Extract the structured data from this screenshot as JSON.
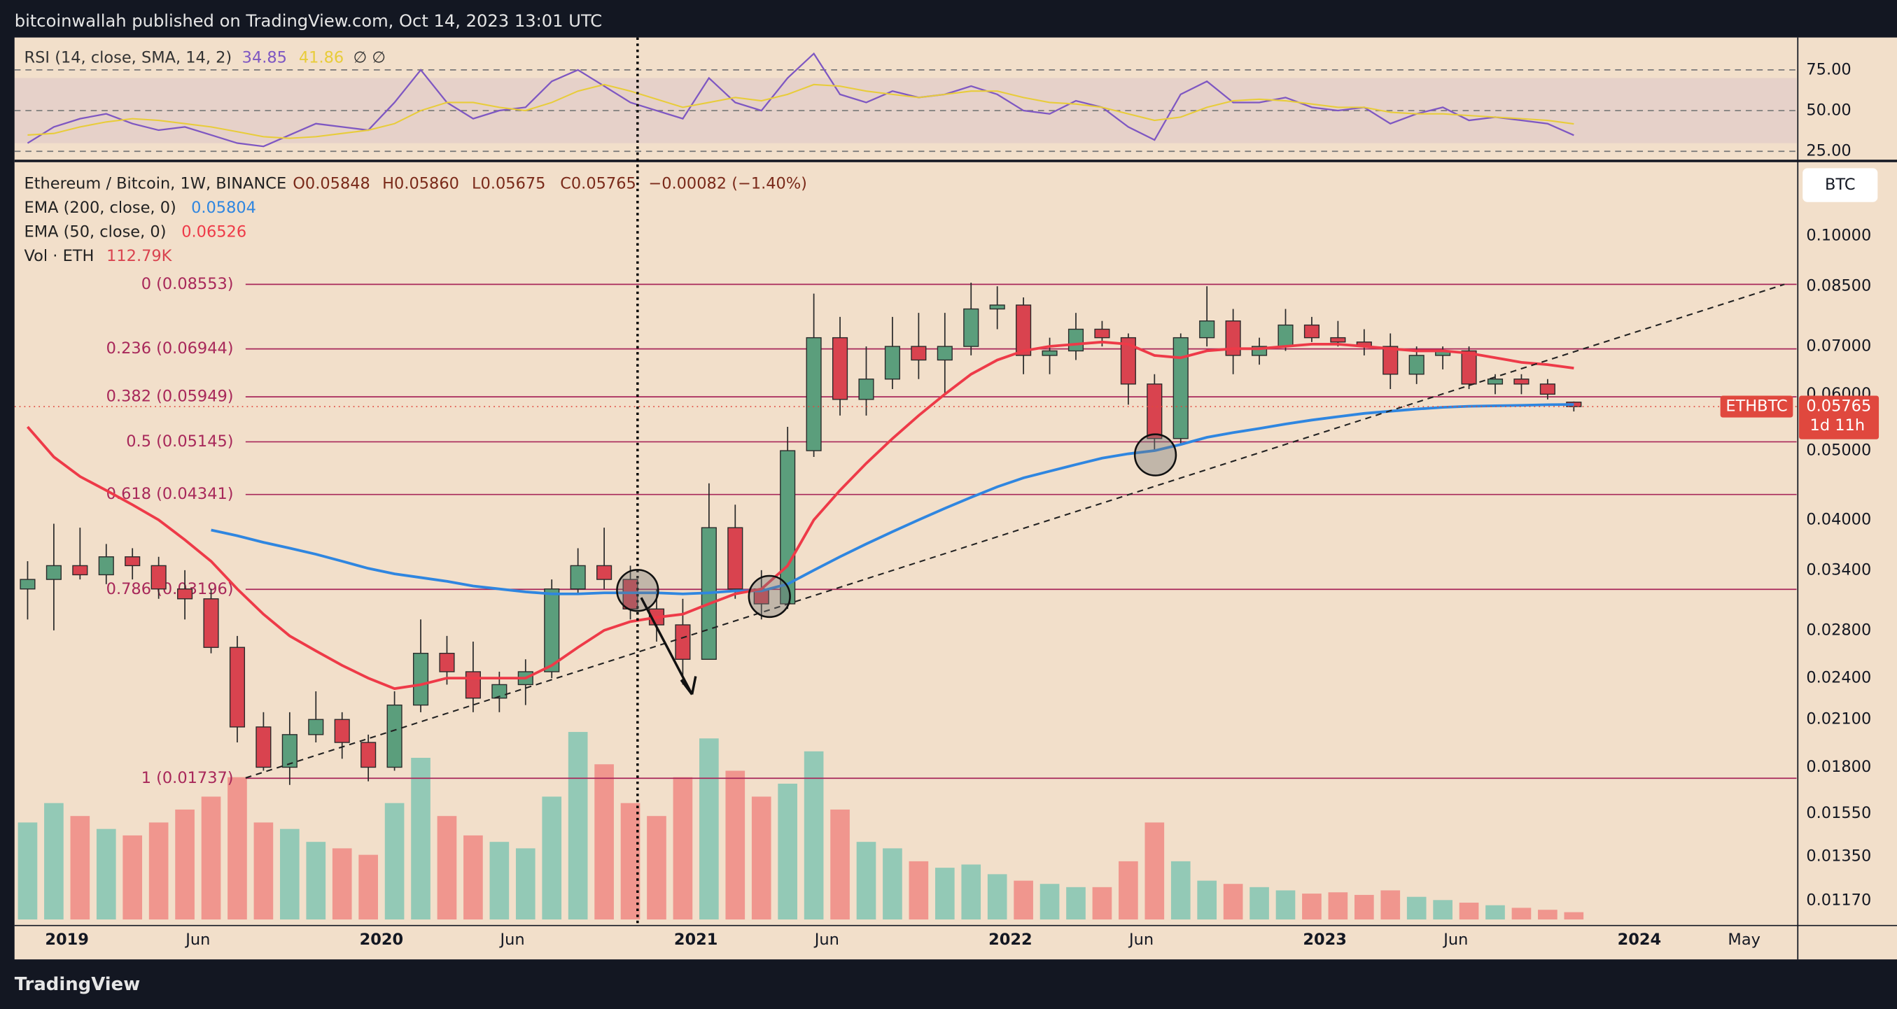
{
  "header": {
    "publisher": "bitcoinwallah published on TradingView.com, Oct 14, 2023 13:01 UTC",
    "brand": "TradingView"
  },
  "chart_data": [
    {
      "type": "candlestick",
      "title": "Ethereum / Bitcoin, 1W, BINANCE",
      "ohlc_labels": [
        "O0.05848",
        "H0.05860",
        "L0.05675",
        "C0.05765",
        "−0.00082 (−1.40%)"
      ],
      "x": [
        "2018-11",
        "2018-12",
        "2019-01",
        "2019-02",
        "2019-03",
        "2019-04",
        "2019-05",
        "2019-06",
        "2019-07",
        "2019-08",
        "2019-09",
        "2019-10",
        "2019-11",
        "2019-12",
        "2020-01",
        "2020-02",
        "2020-03",
        "2020-04",
        "2020-05",
        "2020-06",
        "2020-07",
        "2020-08",
        "2020-09",
        "2020-10",
        "2020-11",
        "2020-12",
        "2021-01",
        "2021-02",
        "2021-03",
        "2021-04",
        "2021-05",
        "2021-06",
        "2021-07",
        "2021-08",
        "2021-09",
        "2021-10",
        "2021-11",
        "2021-12",
        "2022-01",
        "2022-02",
        "2022-03",
        "2022-04",
        "2022-05",
        "2022-06",
        "2022-07",
        "2022-08",
        "2022-09",
        "2022-10",
        "2022-11",
        "2022-12",
        "2023-01",
        "2023-02",
        "2023-03",
        "2023-04",
        "2023-05",
        "2023-06",
        "2023-07",
        "2023-08",
        "2023-09",
        "2023-10"
      ],
      "open": [
        0.032,
        0.033,
        0.0345,
        0.0335,
        0.0355,
        0.0345,
        0.032,
        0.031,
        0.0265,
        0.0205,
        0.018,
        0.02,
        0.021,
        0.0195,
        0.018,
        0.022,
        0.026,
        0.0245,
        0.0225,
        0.0235,
        0.0245,
        0.032,
        0.0345,
        0.033,
        0.03,
        0.0285,
        0.0255,
        0.039,
        0.032,
        0.0305,
        0.05,
        0.072,
        0.059,
        0.063,
        0.07,
        0.067,
        0.07,
        0.079,
        0.08,
        0.068,
        0.069,
        0.074,
        0.072,
        0.062,
        0.052,
        0.072,
        0.076,
        0.068,
        0.07,
        0.075,
        0.072,
        0.071,
        0.07,
        0.064,
        0.068,
        0.069,
        0.062,
        0.063,
        0.062,
        0.05848
      ],
      "high": [
        0.035,
        0.0395,
        0.039,
        0.037,
        0.0365,
        0.0355,
        0.034,
        0.032,
        0.0275,
        0.0215,
        0.0215,
        0.023,
        0.0215,
        0.02,
        0.023,
        0.029,
        0.0275,
        0.027,
        0.0245,
        0.0255,
        0.033,
        0.0365,
        0.039,
        0.0345,
        0.032,
        0.031,
        0.045,
        0.042,
        0.034,
        0.054,
        0.083,
        0.077,
        0.07,
        0.077,
        0.078,
        0.078,
        0.086,
        0.085,
        0.082,
        0.072,
        0.078,
        0.076,
        0.073,
        0.064,
        0.073,
        0.085,
        0.079,
        0.072,
        0.079,
        0.077,
        0.076,
        0.074,
        0.073,
        0.07,
        0.07,
        0.07,
        0.064,
        0.064,
        0.063,
        0.0586
      ],
      "low": [
        0.029,
        0.028,
        0.033,
        0.0325,
        0.033,
        0.031,
        0.029,
        0.026,
        0.0195,
        0.0178,
        0.017,
        0.0195,
        0.0185,
        0.0172,
        0.0178,
        0.0215,
        0.0235,
        0.0215,
        0.0215,
        0.022,
        0.024,
        0.0315,
        0.032,
        0.029,
        0.027,
        0.0235,
        0.0255,
        0.031,
        0.029,
        0.03,
        0.049,
        0.056,
        0.056,
        0.061,
        0.063,
        0.06,
        0.068,
        0.074,
        0.064,
        0.064,
        0.067,
        0.07,
        0.058,
        0.05,
        0.051,
        0.07,
        0.064,
        0.066,
        0.069,
        0.071,
        0.07,
        0.068,
        0.061,
        0.062,
        0.065,
        0.061,
        0.06,
        0.06,
        0.059,
        0.05675
      ],
      "close": [
        0.033,
        0.0345,
        0.0335,
        0.0355,
        0.0345,
        0.032,
        0.031,
        0.0265,
        0.0205,
        0.018,
        0.02,
        0.021,
        0.0195,
        0.018,
        0.022,
        0.026,
        0.0245,
        0.0225,
        0.0235,
        0.0245,
        0.032,
        0.0345,
        0.033,
        0.03,
        0.0285,
        0.0255,
        0.039,
        0.032,
        0.0305,
        0.05,
        0.072,
        0.059,
        0.063,
        0.07,
        0.067,
        0.07,
        0.079,
        0.08,
        0.068,
        0.069,
        0.074,
        0.072,
        0.062,
        0.052,
        0.072,
        0.076,
        0.068,
        0.07,
        0.075,
        0.072,
        0.071,
        0.07,
        0.064,
        0.068,
        0.069,
        0.062,
        0.063,
        0.062,
        0.06,
        0.05765
      ],
      "up_color": "#5b9e7c",
      "down_color": "#d9434f",
      "series": [
        {
          "name": "EMA (200, close, 0)",
          "value_label": "0.05804",
          "color": "#2f86e0",
          "values": [
            null,
            null,
            null,
            null,
            null,
            null,
            null,
            0.0387,
            0.038,
            0.0372,
            0.0365,
            0.0358,
            0.035,
            0.0342,
            0.0336,
            0.0332,
            0.0328,
            0.0323,
            0.032,
            0.0317,
            0.0315,
            0.0315,
            0.0316,
            0.0316,
            0.0316,
            0.0315,
            0.0316,
            0.0318,
            0.0318,
            0.0325,
            0.034,
            0.0355,
            0.037,
            0.0385,
            0.04,
            0.0415,
            0.043,
            0.0445,
            0.0458,
            0.0468,
            0.0478,
            0.0488,
            0.0495,
            0.05,
            0.051,
            0.0522,
            0.053,
            0.0537,
            0.0545,
            0.0552,
            0.0558,
            0.0564,
            0.0568,
            0.0572,
            0.0575,
            0.0577,
            0.0578,
            0.0579,
            0.058,
            0.05804
          ]
        },
        {
          "name": "EMA (50, close, 0)",
          "value_label": "0.06526",
          "color": "#ee3a48",
          "values": [
            0.054,
            0.049,
            0.046,
            0.044,
            0.042,
            0.04,
            0.0375,
            0.035,
            0.032,
            0.0295,
            0.0275,
            0.0262,
            0.025,
            0.024,
            0.0232,
            0.0235,
            0.024,
            0.024,
            0.024,
            0.024,
            0.025,
            0.0265,
            0.028,
            0.0288,
            0.0292,
            0.0295,
            0.0305,
            0.0315,
            0.032,
            0.0345,
            0.04,
            0.044,
            0.048,
            0.052,
            0.056,
            0.06,
            0.064,
            0.067,
            0.069,
            0.07,
            0.0705,
            0.071,
            0.0705,
            0.068,
            0.0675,
            0.069,
            0.0695,
            0.0695,
            0.07,
            0.0705,
            0.0705,
            0.07,
            0.0695,
            0.069,
            0.069,
            0.0685,
            0.0675,
            0.0665,
            0.066,
            0.06526
          ]
        }
      ],
      "log_scale": true,
      "xlim": [
        "2018-11",
        "2024-07"
      ],
      "ylim": [
        0.0108,
        0.1264
      ],
      "xticks": [
        {
          "value": "2019-01",
          "label": "2019"
        },
        {
          "value": "2019-06",
          "label": "Jun"
        },
        {
          "value": "2020-01",
          "label": "2020"
        },
        {
          "value": "2020-06",
          "label": "Jun"
        },
        {
          "value": "2021-01",
          "label": "2021"
        },
        {
          "value": "2021-06",
          "label": "Jun"
        },
        {
          "value": "2022-01",
          "label": "2022"
        },
        {
          "value": "2022-06",
          "label": "Jun"
        },
        {
          "value": "2023-01",
          "label": "2023"
        },
        {
          "value": "2023-06",
          "label": "Jun"
        },
        {
          "value": "2024-01",
          "label": "2024"
        },
        {
          "value": "2024-05",
          "label": "May"
        }
      ],
      "yticks": [
        {
          "value": 0.1,
          "label": "0.10000"
        },
        {
          "value": 0.085,
          "label": "0.08500"
        },
        {
          "value": 0.07,
          "label": "0.07000"
        },
        {
          "value": 0.06,
          "label": "0.06000"
        },
        {
          "value": 0.05,
          "label": "0.05000"
        },
        {
          "value": 0.04,
          "label": "0.04000"
        },
        {
          "value": 0.034,
          "label": "0.03400"
        },
        {
          "value": 0.028,
          "label": "0.02800"
        },
        {
          "value": 0.024,
          "label": "0.02400"
        },
        {
          "value": 0.021,
          "label": "0.02100"
        },
        {
          "value": 0.018,
          "label": "0.01800"
        },
        {
          "value": 0.0155,
          "label": "0.01550"
        },
        {
          "value": 0.0135,
          "label": "0.01350"
        },
        {
          "value": 0.0117,
          "label": "0.01170"
        }
      ],
      "annotations": [
        {
          "label": "0 (0.08553)",
          "value": 0.08553
        },
        {
          "label": "0.236 (0.06944)",
          "value": 0.06944
        },
        {
          "label": "0.382 (0.05949)",
          "value": 0.05949
        },
        {
          "label": "0.5 (0.05145)",
          "value": 0.05145
        },
        {
          "label": "0.618 (0.04341)",
          "value": 0.04341
        },
        {
          "label": "0.786 (0.03196)",
          "value": 0.03196
        },
        {
          "label": "1 (0.01737)",
          "value": 0.01737
        }
      ],
      "fib_color": "#a8285a",
      "price_tag": {
        "symbol": "ETHBTC",
        "value": 0.05765,
        "countdown": "1d 11h",
        "color": "#e0483e"
      },
      "currency_button": "BTC"
    },
    {
      "type": "line",
      "title": "RSI (14, close, SMA, 14, 2)",
      "value_labels": [
        "34.85",
        "41.86",
        "∅ ∅"
      ],
      "series": [
        {
          "color": "#7e57c2",
          "values": [
            30,
            40,
            45,
            48,
            42,
            38,
            40,
            35,
            30,
            28,
            35,
            42,
            40,
            38,
            55,
            75,
            55,
            45,
            50,
            52,
            68,
            75,
            65,
            55,
            50,
            45,
            70,
            55,
            50,
            70,
            85,
            60,
            55,
            62,
            58,
            60,
            65,
            60,
            50,
            48,
            56,
            52,
            40,
            32,
            60,
            68,
            55,
            55,
            58,
            52,
            50,
            52,
            42,
            48,
            52,
            44,
            46,
            44,
            42,
            34.85
          ]
        },
        {
          "color": "#e8cc3a",
          "values": [
            35,
            36,
            40,
            43,
            45,
            44,
            42,
            40,
            37,
            34,
            33,
            34,
            36,
            38,
            42,
            50,
            55,
            55,
            52,
            50,
            55,
            62,
            66,
            62,
            57,
            52,
            55,
            58,
            56,
            60,
            66,
            65,
            62,
            60,
            58,
            60,
            62,
            62,
            58,
            55,
            54,
            52,
            48,
            44,
            46,
            52,
            56,
            57,
            56,
            54,
            52,
            52,
            49,
            48,
            48,
            47,
            46,
            45,
            44,
            41.86
          ]
        }
      ],
      "ylim": [
        20.6,
        91.9
      ],
      "yticks": [
        {
          "value": 75,
          "label": "75.00"
        },
        {
          "value": 50,
          "label": "50.00"
        },
        {
          "value": 25,
          "label": "25.00"
        }
      ],
      "band": [
        30,
        70
      ]
    },
    {
      "type": "bar",
      "title": "Vol · ETH",
      "value_label": "112.79K",
      "values": [
        1500,
        1800,
        1600,
        1400,
        1300,
        1500,
        1700,
        1900,
        2200,
        1500,
        1400,
        1200,
        1100,
        1000,
        1800,
        2500,
        1600,
        1300,
        1200,
        1100,
        1900,
        2900,
        2400,
        1800,
        1600,
        2200,
        2800,
        2300,
        1900,
        2100,
        2600,
        1700,
        1200,
        1100,
        900,
        800,
        850,
        700,
        600,
        550,
        500,
        500,
        900,
        1500,
        900,
        600,
        550,
        500,
        450,
        400,
        420,
        380,
        450,
        350,
        300,
        260,
        220,
        180,
        150,
        112.79
      ],
      "up_color": "#93c9b6",
      "down_color": "#f0968e"
    }
  ]
}
